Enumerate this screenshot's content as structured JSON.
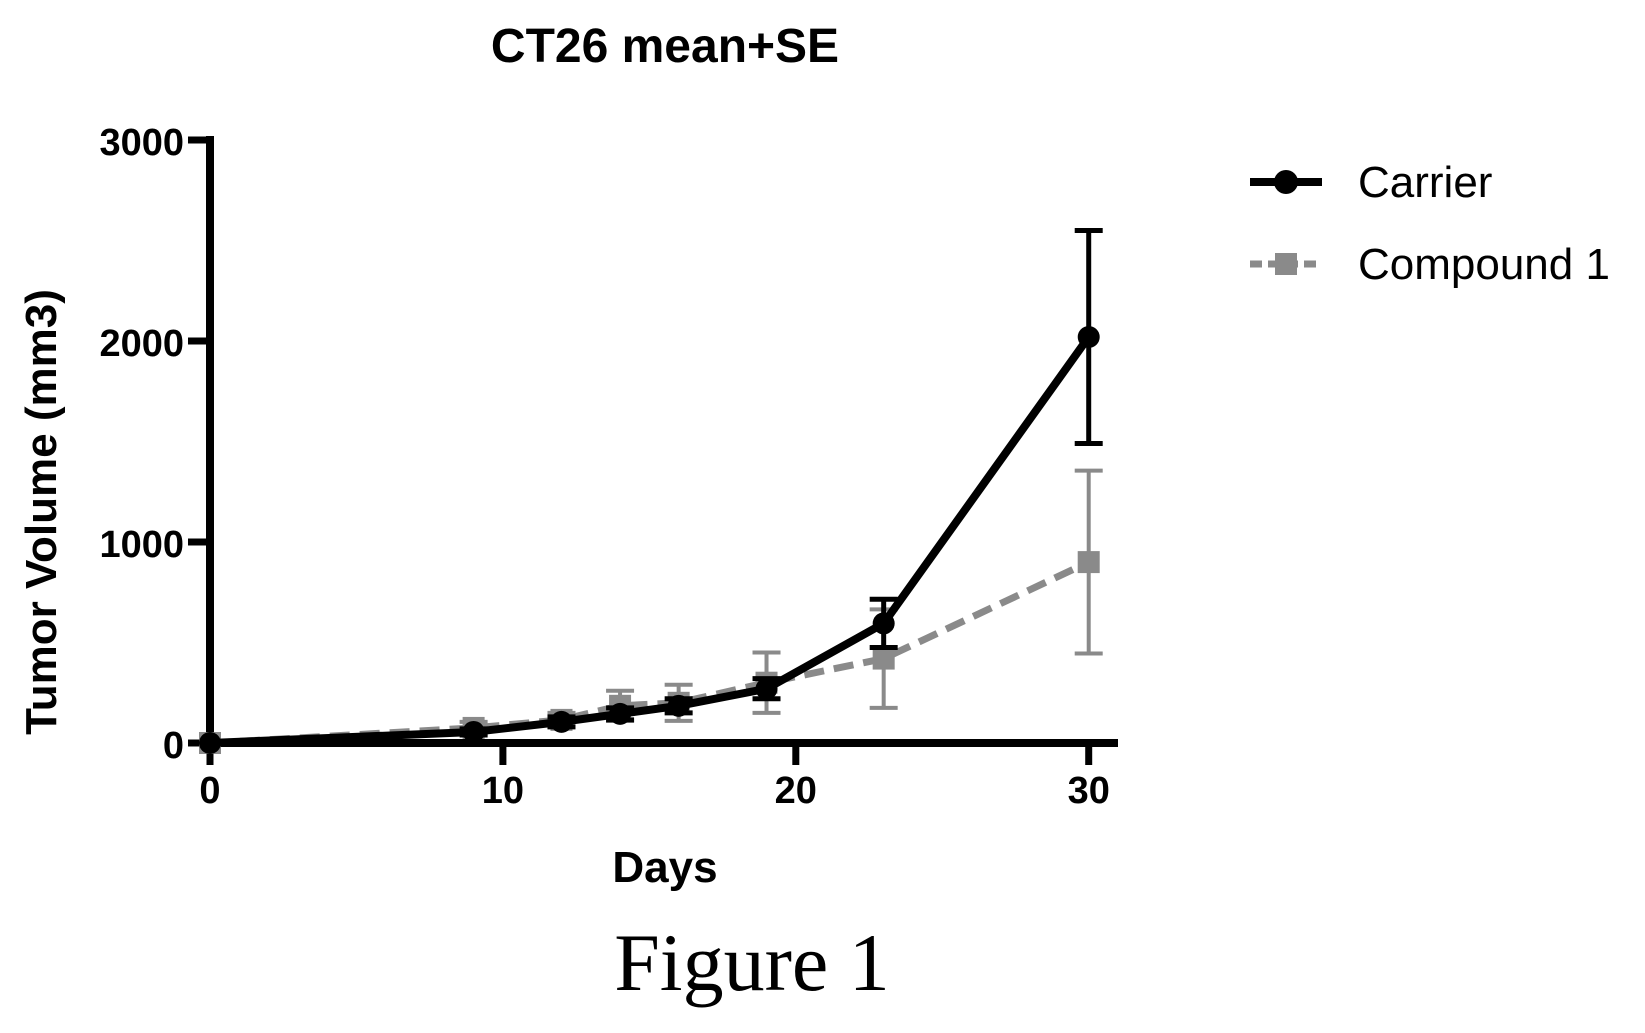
{
  "chart_data": {
    "type": "line",
    "title": "CT26 mean+SE",
    "xlabel": "Days",
    "ylabel": "Tumor Volume (mm3)",
    "xlim": [
      0,
      31
    ],
    "ylim": [
      0,
      3000
    ],
    "xticks": [
      0,
      10,
      20,
      30
    ],
    "yticks": [
      0,
      1000,
      2000,
      3000
    ],
    "grid": false,
    "legend_position": "top-right",
    "series": [
      {
        "name": "Carrier",
        "style": "solid",
        "marker": "circle",
        "color": "#000000",
        "x": [
          0,
          9,
          12,
          14,
          16,
          19,
          23,
          30
        ],
        "y": [
          0,
          55,
          105,
          145,
          185,
          270,
          595,
          2020
        ],
        "se": [
          0,
          15,
          25,
          30,
          35,
          50,
          120,
          530
        ]
      },
      {
        "name": "Compound 1",
        "style": "dashed",
        "marker": "square",
        "color": "#8a8a8a",
        "x": [
          0,
          9,
          12,
          14,
          16,
          19,
          23,
          30
        ],
        "y": [
          0,
          75,
          115,
          185,
          200,
          300,
          420,
          900
        ],
        "se": [
          0,
          30,
          35,
          75,
          90,
          150,
          245,
          455
        ]
      }
    ]
  },
  "figure_caption": "Figure 1"
}
